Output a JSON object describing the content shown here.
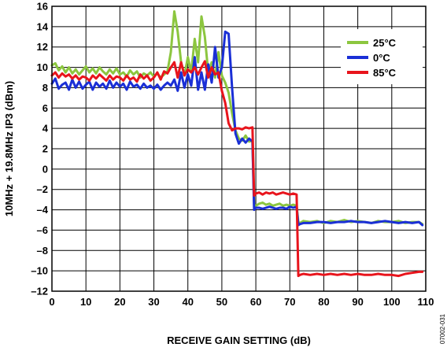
{
  "chart_data": {
    "type": "line",
    "xlabel": "RECEIVE GAIN SETTING (dB)",
    "ylabel": "10MHz + 19.8MHz IP3 (dBm)",
    "xlim": [
      0,
      110
    ],
    "ylim": [
      -12,
      16
    ],
    "xticks": [
      0,
      10,
      20,
      30,
      40,
      50,
      60,
      70,
      80,
      90,
      100,
      110
    ],
    "yticks": [
      16,
      14,
      12,
      10,
      8,
      6,
      4,
      2,
      0,
      -2,
      -4,
      -6,
      -8,
      -10,
      -12
    ],
    "ytick_labels": [
      "16",
      "14",
      "12",
      "10",
      "8",
      "6",
      "4",
      "2",
      "0",
      "–2",
      "–4",
      "–6",
      "–8",
      "–10",
      "–12"
    ],
    "grid": true,
    "legend_position": "top-right",
    "figure_code": "07002-031",
    "series": [
      {
        "name": "25°C",
        "color": "#8cc63f",
        "x": [
          0,
          1,
          2,
          3,
          4,
          5,
          6,
          7,
          8,
          9,
          10,
          11,
          12,
          13,
          14,
          15,
          16,
          17,
          18,
          19,
          20,
          21,
          22,
          23,
          24,
          25,
          26,
          27,
          28,
          29,
          30,
          31,
          32,
          33,
          34,
          35,
          36,
          37,
          38,
          39,
          40,
          41,
          42,
          43,
          44,
          45,
          46,
          47,
          48,
          49,
          50,
          51,
          52,
          53,
          54,
          55,
          56,
          57,
          58,
          59,
          59.5,
          60,
          61,
          62,
          63,
          64,
          65,
          66,
          67,
          68,
          69,
          70,
          71,
          72,
          72.5,
          73,
          74,
          76,
          78,
          80,
          82,
          84,
          86,
          88,
          90,
          92,
          94,
          96,
          98,
          100,
          102,
          104,
          106,
          108,
          109
        ],
        "y": [
          10.2,
          10.4,
          9.7,
          10.1,
          9.5,
          10.0,
          9.4,
          9.8,
          9.3,
          9.7,
          10.1,
          9.5,
          9.9,
          9.4,
          10.0,
          9.6,
          9.3,
          9.8,
          9.4,
          9.9,
          9.3,
          9.5,
          9.1,
          9.7,
          9.3,
          9.6,
          9.0,
          9.4,
          9.2,
          9.5,
          9.1,
          9.4,
          9.0,
          9.3,
          9.6,
          11.5,
          15.5,
          13.5,
          10.5,
          9.2,
          11.0,
          9.5,
          12.8,
          10.5,
          15.0,
          13.0,
          9.5,
          10.5,
          9.0,
          11.5,
          9.2,
          8.5,
          7.5,
          5.5,
          3.8,
          3.0,
          2.8,
          3.3,
          2.7,
          2.8,
          -3.5,
          -3.6,
          -3.4,
          -3.3,
          -3.5,
          -3.4,
          -3.6,
          -3.5,
          -3.4,
          -3.6,
          -3.5,
          -3.6,
          -3.5,
          -3.6,
          -5.2,
          -5.3,
          -5.1,
          -5.2,
          -5.1,
          -5.3,
          -5.1,
          -5.2,
          -5.0,
          -5.2,
          -5.1,
          -5.2,
          -5.3,
          -5.1,
          -5.2,
          -5.2,
          -5.1,
          -5.3,
          -5.2,
          -5.2,
          -5.4
        ]
      },
      {
        "name": "0°C",
        "color": "#1a2fd6",
        "x": [
          0,
          1,
          2,
          3,
          4,
          5,
          6,
          7,
          8,
          9,
          10,
          11,
          12,
          13,
          14,
          15,
          16,
          17,
          18,
          19,
          20,
          21,
          22,
          23,
          24,
          25,
          26,
          27,
          28,
          29,
          30,
          31,
          32,
          33,
          34,
          35,
          36,
          37,
          38,
          39,
          40,
          41,
          42,
          43,
          44,
          45,
          46,
          47,
          48,
          49,
          50,
          51,
          52,
          53,
          54,
          55,
          56,
          57,
          58,
          59,
          59.5,
          60,
          61,
          62,
          63,
          64,
          65,
          66,
          67,
          68,
          69,
          70,
          71,
          72,
          72.5,
          73,
          74,
          76,
          78,
          80,
          82,
          84,
          86,
          88,
          90,
          92,
          94,
          96,
          98,
          100,
          102,
          104,
          106,
          108,
          109
        ],
        "y": [
          8.4,
          8.9,
          7.9,
          8.3,
          8.5,
          7.8,
          8.8,
          8.0,
          8.6,
          7.9,
          8.3,
          8.6,
          7.8,
          8.5,
          8.1,
          8.4,
          7.9,
          8.7,
          8.0,
          8.5,
          8.1,
          8.4,
          7.8,
          8.6,
          8.1,
          8.3,
          7.9,
          8.4,
          8.0,
          8.2,
          7.9,
          8.3,
          7.8,
          8.2,
          8.5,
          8.2,
          8.8,
          7.7,
          9.5,
          8.0,
          9.3,
          8.2,
          11.0,
          7.8,
          9.5,
          7.8,
          10.3,
          8.5,
          12.0,
          9.0,
          10.0,
          13.5,
          13.3,
          8.0,
          3.5,
          2.5,
          3.0,
          2.6,
          3.0,
          2.7,
          -4.0,
          -3.8,
          -3.8,
          -3.9,
          -3.8,
          -3.7,
          -3.8,
          -3.9,
          -3.8,
          -3.8,
          -3.9,
          -3.7,
          -3.8,
          -3.7,
          -5.5,
          -5.4,
          -5.3,
          -5.3,
          -5.2,
          -5.2,
          -5.3,
          -5.2,
          -5.2,
          -5.1,
          -5.2,
          -5.2,
          -5.3,
          -5.2,
          -5.1,
          -5.2,
          -5.3,
          -5.2,
          -5.3,
          -5.2,
          -5.5
        ]
      },
      {
        "name": "85°C",
        "color": "#e8141c",
        "x": [
          0,
          1,
          2,
          3,
          4,
          5,
          6,
          7,
          8,
          9,
          10,
          11,
          12,
          13,
          14,
          15,
          16,
          17,
          18,
          19,
          20,
          21,
          22,
          23,
          24,
          25,
          26,
          27,
          28,
          29,
          30,
          31,
          32,
          33,
          34,
          35,
          36,
          37,
          38,
          39,
          40,
          41,
          42,
          43,
          44,
          45,
          46,
          47,
          48,
          49,
          50,
          51,
          52,
          53,
          54,
          55,
          56,
          57,
          58,
          59,
          59.5,
          60,
          61,
          62,
          63,
          64,
          65,
          66,
          67,
          68,
          69,
          70,
          71,
          72,
          72.5,
          73,
          74,
          76,
          78,
          80,
          82,
          84,
          86,
          88,
          90,
          92,
          94,
          96,
          98,
          100,
          102,
          104,
          106,
          108,
          109
        ],
        "y": [
          9.2,
          9.5,
          9.0,
          9.4,
          9.1,
          9.3,
          8.9,
          9.2,
          8.8,
          9.1,
          9.0,
          8.7,
          9.2,
          8.9,
          9.3,
          9.0,
          8.7,
          9.2,
          8.8,
          9.1,
          9.0,
          8.7,
          9.2,
          8.8,
          9.0,
          8.6,
          9.3,
          8.9,
          9.2,
          8.7,
          9.0,
          9.5,
          8.8,
          9.6,
          9.4,
          10.0,
          10.5,
          9.0,
          10.5,
          9.2,
          9.8,
          9.5,
          10.0,
          9.3,
          10.0,
          10.6,
          9.0,
          10.0,
          9.3,
          9.5,
          7.7,
          6.5,
          4.5,
          3.8,
          4.0,
          4.0,
          3.9,
          4.1,
          4.0,
          4.1,
          -2.6,
          -2.4,
          -2.3,
          -2.5,
          -2.3,
          -2.4,
          -2.3,
          -2.5,
          -2.4,
          -2.3,
          -2.4,
          -2.5,
          -2.4,
          -2.5,
          -10.5,
          -10.4,
          -10.3,
          -10.4,
          -10.3,
          -10.4,
          -10.3,
          -10.4,
          -10.3,
          -10.4,
          -10.3,
          -10.4,
          -10.4,
          -10.3,
          -10.4,
          -10.4,
          -10.5,
          -10.3,
          -10.2,
          -10.1,
          -10.1
        ]
      }
    ]
  }
}
